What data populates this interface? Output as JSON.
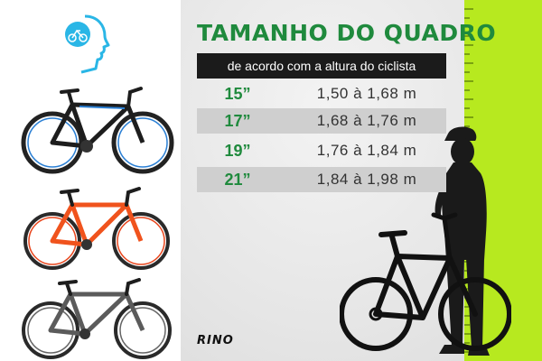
{
  "header": {
    "title": "TAMANHO DO QUADRO",
    "subtitle": "de acordo com a altura do ciclista"
  },
  "size_table": [
    {
      "size": "15”",
      "range": "1,50 à 1,68 m"
    },
    {
      "size": "17”",
      "range": "1,68 à 1,76 m"
    },
    {
      "size": "19”",
      "range": "1,76 à 1,84 m"
    },
    {
      "size": "21”",
      "range": "1,84 à 1,98 m"
    }
  ],
  "brand": {
    "logo_text": "RINO"
  },
  "colors": {
    "title_green": "#1f8a3d",
    "ruler_lime": "#b7e91f",
    "subtitle_bg": "#1b1b1b",
    "brand_icon": "#2ab6e6"
  },
  "icons": [
    "cyclist-head-logo-icon",
    "bike-black-blue-icon",
    "bike-orange-icon",
    "bike-gray-icon",
    "cyclist-silhouette-icon"
  ]
}
